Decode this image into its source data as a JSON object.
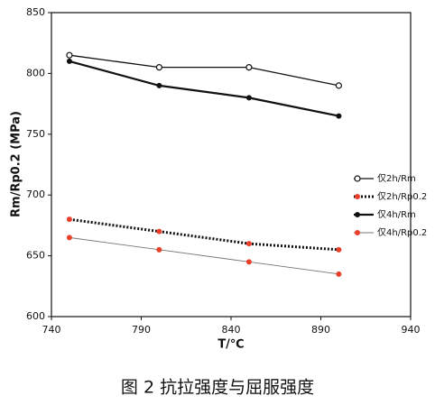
{
  "chart_data": {
    "type": "line",
    "caption": "图 2 抗拉强度与屈服强度",
    "xlabel": "T/℃",
    "ylabel": "Rm/Rp0.2 (MPa)",
    "x": [
      750,
      800,
      850,
      900
    ],
    "xlim": [
      740,
      940
    ],
    "xticks": [
      740,
      790,
      840,
      890,
      940
    ],
    "ylim": [
      600,
      850
    ],
    "yticks": [
      600,
      650,
      700,
      750,
      800,
      850
    ],
    "series": [
      {
        "name": "仅2h/Rm",
        "color": "#111111",
        "marker_color": "#111111",
        "marker": "open",
        "line_style": "solid",
        "values": [
          815,
          805,
          805,
          790
        ]
      },
      {
        "name": "仅2h/Rp0.2",
        "color": "#111111",
        "marker_color": "#e8402a",
        "marker": "filled",
        "line_style": "dotted",
        "values": [
          680,
          670,
          660,
          655
        ]
      },
      {
        "name": "仅4h/Rm",
        "color": "#111111",
        "marker_color": "#111111",
        "marker": "filled",
        "line_style": "thick",
        "values": [
          810,
          790,
          780,
          765
        ]
      },
      {
        "name": "仅4h/Rp0.2",
        "color": "#777777",
        "marker_color": "#e8402a",
        "marker": "filled",
        "line_style": "thin",
        "values": [
          665,
          655,
          645,
          635
        ]
      }
    ]
  }
}
